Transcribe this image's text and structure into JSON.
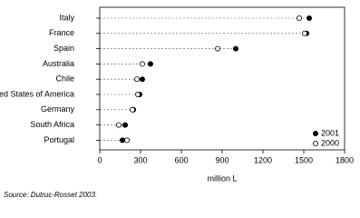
{
  "chart_data": {
    "type": "dot",
    "categories": [
      "Italy",
      "France",
      "Spain",
      "Australia",
      "Chile",
      "United States of America",
      "Germany",
      "South Africa",
      "Portugal"
    ],
    "series": [
      {
        "name": "2001",
        "color": "#000000",
        "marker": "filled",
        "values": [
          1540,
          1520,
          1000,
          373,
          313,
          293,
          247,
          187,
          167
        ]
      },
      {
        "name": "2000",
        "color": "#000000",
        "marker": "open",
        "values": [
          1467,
          1507,
          867,
          313,
          273,
          280,
          240,
          140,
          200
        ]
      }
    ],
    "xlim": [
      0,
      1800
    ],
    "xticks": [
      0,
      300,
      600,
      900,
      1200,
      1500,
      1800
    ],
    "xlabel": "million L",
    "legend": "lower-right",
    "source": "Source: Dutruc-Rosset 2003."
  }
}
